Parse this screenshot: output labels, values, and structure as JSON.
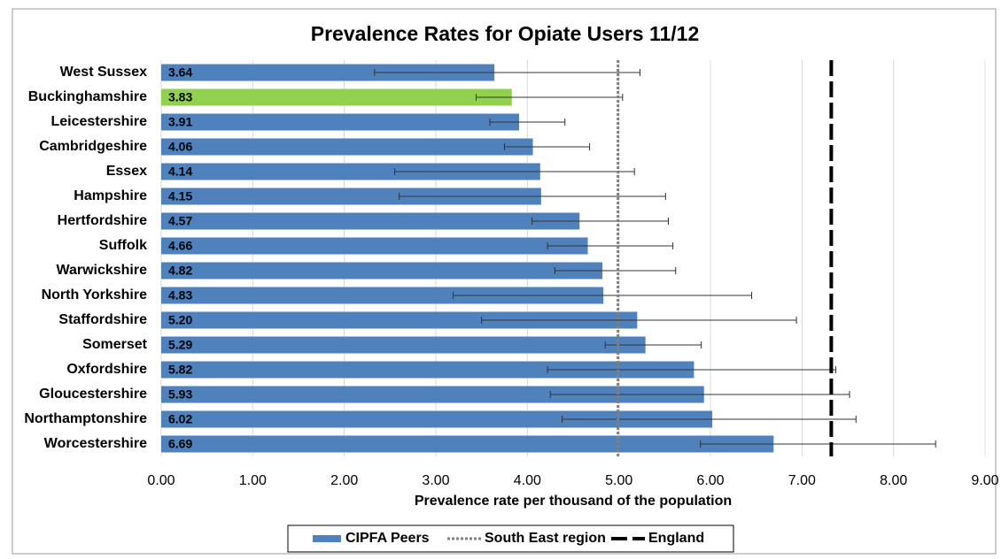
{
  "chart_data": {
    "type": "bar",
    "orientation": "horizontal",
    "title": "Prevalence Rates for Opiate Users 11/12",
    "x_label": "Prevalence rate per thousand of the population",
    "categories": [
      "West Sussex",
      "Buckinghamshire",
      "Leicestershire",
      "Cambridgeshire",
      "Essex",
      "Hampshire",
      "Hertfordshire",
      "Suffolk",
      "Warwickshire",
      "North Yorkshire",
      "Staffordshire",
      "Somerset",
      "Oxfordshire",
      "Gloucestershire",
      "Northamptonshire",
      "Worcestershire"
    ],
    "series": [
      {
        "name": "CIPFA Peers",
        "color": "#4f81bd",
        "highlight": {
          "index": 1,
          "color": "#92d050"
        },
        "values": [
          3.64,
          3.83,
          3.91,
          4.06,
          4.14,
          4.15,
          4.57,
          4.66,
          4.82,
          4.83,
          5.2,
          5.29,
          5.82,
          5.93,
          6.02,
          6.69
        ],
        "value_labels": [
          "3.64",
          "3.83",
          "3.91",
          "4.06",
          "4.14",
          "4.15",
          "4.57",
          "4.66",
          "4.82",
          "4.83",
          "5.20",
          "5.29",
          "5.82",
          "5.93",
          "6.02",
          "6.69"
        ],
        "lower": [
          2.33,
          3.44,
          3.59,
          3.75,
          2.55,
          2.6,
          4.05,
          4.22,
          4.3,
          3.19,
          3.5,
          4.85,
          4.22,
          4.25,
          4.38,
          5.89
        ],
        "upper": [
          5.23,
          5.04,
          4.41,
          4.68,
          5.17,
          5.51,
          5.54,
          5.59,
          5.62,
          6.45,
          6.94,
          5.9,
          7.37,
          7.52,
          7.59,
          8.46
        ]
      }
    ],
    "reference_lines": [
      {
        "name": "South East region",
        "value": 4.99,
        "color": "#808080",
        "style": "dotted"
      },
      {
        "name": "England",
        "value": 7.32,
        "color": "#000000",
        "style": "dashed"
      }
    ],
    "xlim": [
      0,
      9
    ],
    "xticks": [
      {
        "value": 0,
        "label": "0.00"
      },
      {
        "value": 1,
        "label": "1.00"
      },
      {
        "value": 2,
        "label": "2.00"
      },
      {
        "value": 3,
        "label": "3.00"
      },
      {
        "value": 4,
        "label": "4.00"
      },
      {
        "value": 5,
        "label": "5.00"
      },
      {
        "value": 6,
        "label": "6.00"
      },
      {
        "value": 7,
        "label": "7.00"
      },
      {
        "value": 8,
        "label": "8.00"
      },
      {
        "value": 9,
        "label": "9.00"
      }
    ],
    "grid": true,
    "legend": "bottom"
  }
}
